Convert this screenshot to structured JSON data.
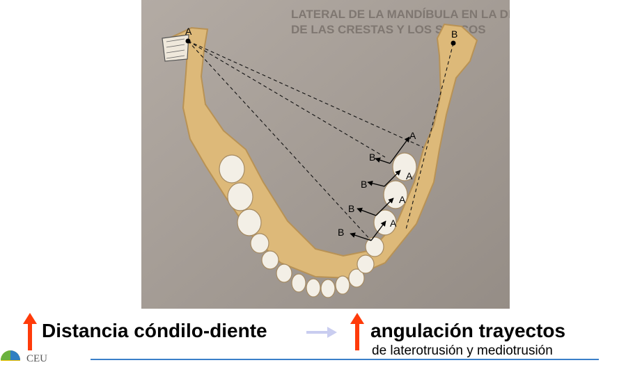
{
  "figure": {
    "labels": {
      "a_condyle": "A",
      "b_condyle": "B",
      "a_points": [
        "A",
        "A",
        "A",
        "A"
      ],
      "b_points": [
        "B",
        "B",
        "B",
        "B"
      ]
    },
    "background_text_lines": [
      "LATERAL DE LA MANDÍBULA EN LA DIRECCIÓN",
      "DE LAS CRESTAS Y LOS SURCOS"
    ]
  },
  "caption": {
    "left": "Distancia cóndilo-diente",
    "right": "angulación trayectos",
    "right_sub": "de laterotrusión y mediotrusión"
  },
  "footer": {
    "logo_text": "CEU"
  },
  "colors": {
    "accent_arrow": "#ff3b0a",
    "connector_arrow": "#c9cdf0",
    "bone": "#dcb87a",
    "background_photo": "#a49c95",
    "footer_line": "#3a7fc9"
  }
}
